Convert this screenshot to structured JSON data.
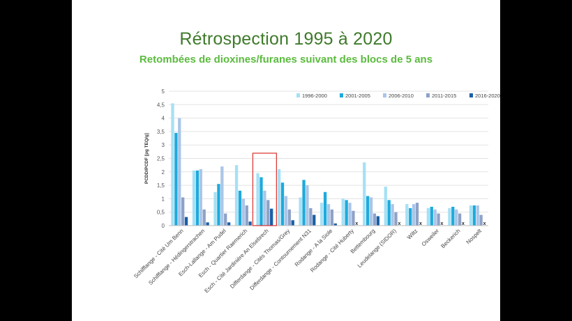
{
  "title": "Rétrospection 1995 à 2020",
  "subtitle": "Retombées de dioxines/furanes suivant des blocs de 5 ans",
  "chart_data": {
    "type": "bar",
    "ylabel": "PCDD/PCDF [pg TEQ/g]",
    "ylim": [
      0,
      5
    ],
    "yticks": [
      "0",
      "0,5",
      "1",
      "1,5",
      "2",
      "2,5",
      "3",
      "3,5",
      "4",
      "4,5",
      "5"
    ],
    "grid": true,
    "legend": "top-right",
    "highlight_category_index": 5,
    "highlight_color": "#d9302c",
    "missing_marker": "x",
    "categories": [
      "Schifflange - Cité Um Benn",
      "Schifflange - Hédingerstrachen",
      "Esch-Lallange - Am Pudel",
      "Esch - Quartier Raemerich",
      "Esch - Cité Jardinière An Elsebrech",
      "Differdange - Cités Thomas/Grey",
      "Differdange - Contournement N31",
      "Rodange - A la Siole",
      "Rodange - Cité Huberty",
      "Bettembourg",
      "Leudelange (SIDOR)",
      "Wiltz",
      "Osweiler",
      "Beckerich",
      "Nospelt"
    ],
    "series": [
      {
        "name": "1996-2000",
        "color": "#a6e1f5",
        "values": [
          4.55,
          2.05,
          1.25,
          2.25,
          1.95,
          2.1,
          1.05,
          0.85,
          1.0,
          2.35,
          1.45,
          0.8,
          0.65,
          0.65,
          0.75
        ]
      },
      {
        "name": "2001-2005",
        "color": "#1eaadc",
        "values": [
          3.45,
          2.05,
          1.55,
          1.3,
          1.8,
          1.6,
          1.7,
          1.25,
          0.95,
          1.1,
          0.95,
          0.65,
          0.7,
          0.7,
          0.75
        ]
      },
      {
        "name": "2006-2010",
        "color": "#aac6e8",
        "values": [
          4.0,
          2.1,
          2.2,
          1.0,
          1.3,
          1.1,
          1.5,
          0.8,
          0.85,
          1.05,
          0.8,
          0.8,
          0.6,
          0.6,
          0.75
        ]
      },
      {
        "name": "2011-2015",
        "color": "#8ea2c8",
        "values": [
          1.05,
          0.6,
          0.45,
          0.75,
          0.95,
          0.6,
          0.65,
          0.6,
          0.55,
          0.45,
          0.5,
          0.85,
          0.45,
          0.45,
          0.4
        ]
      },
      {
        "name": "2016-2020",
        "color": "#1a5fa8",
        "values": [
          0.32,
          0.12,
          0.12,
          0.15,
          0.63,
          0.2,
          0.4,
          0.08,
          0.0,
          0.35,
          0.0,
          0.0,
          0.0,
          0.0,
          0.0
        ]
      }
    ],
    "missing": [
      [
        0,
        4,
        false
      ],
      [
        1,
        4,
        false
      ],
      [
        2,
        4,
        false
      ],
      [
        3,
        4,
        false
      ],
      [
        4,
        4,
        false
      ],
      [
        5,
        4,
        false
      ],
      [
        6,
        4,
        false
      ],
      [
        7,
        4,
        false
      ],
      [
        8,
        4,
        true
      ],
      [
        9,
        4,
        false
      ],
      [
        10,
        4,
        true
      ],
      [
        11,
        4,
        true
      ],
      [
        12,
        4,
        true
      ],
      [
        13,
        4,
        true
      ],
      [
        14,
        4,
        true
      ]
    ]
  }
}
